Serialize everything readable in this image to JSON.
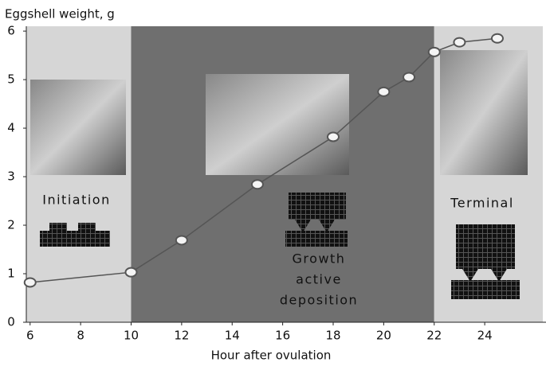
{
  "chart_data": {
    "type": "line",
    "y_label": "Eggshell weight, g",
    "x_label": "Hour after ovulation",
    "x": [
      6,
      10,
      12,
      15,
      18,
      20,
      21,
      22,
      23,
      24.5
    ],
    "series": [
      {
        "values": [
          0.82,
          1.03,
          1.69,
          2.84,
          3.82,
          4.75,
          5.05,
          5.57,
          5.77,
          5.85
        ],
        "color": "#555555"
      }
    ],
    "xlim": [
      5.85,
      26.3
    ],
    "ylim": [
      0,
      6.1
    ],
    "xticks": [
      6,
      8,
      10,
      12,
      14,
      16,
      18,
      20,
      22,
      24
    ],
    "yticks": [
      0,
      1,
      2,
      3,
      4,
      5,
      6
    ],
    "phases": [
      {
        "label": [
          "Initiation"
        ],
        "from": 5.85,
        "to": 10,
        "color": "#d6d6d6"
      },
      {
        "label": [
          "Growth",
          "active",
          "deposition"
        ],
        "from": 10,
        "to": 22,
        "color": "#6f6f6f"
      },
      {
        "label": [
          "Terminal"
        ],
        "from": 22,
        "to": 26.3,
        "color": "#d6d6d6"
      }
    ]
  }
}
